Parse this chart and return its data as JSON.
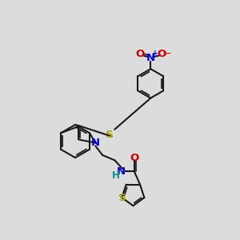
{
  "bg_color": "#dcdcdc",
  "bond_color": "#1a1a1a",
  "N_color": "#0000ee",
  "O_color": "#cc0000",
  "S_color": "#aaaa00",
  "NH_color": "#009090",
  "bond_lw": 1.5,
  "font_size": 8.5,
  "xlim": [
    0,
    10
  ],
  "ylim": [
    0,
    10
  ]
}
